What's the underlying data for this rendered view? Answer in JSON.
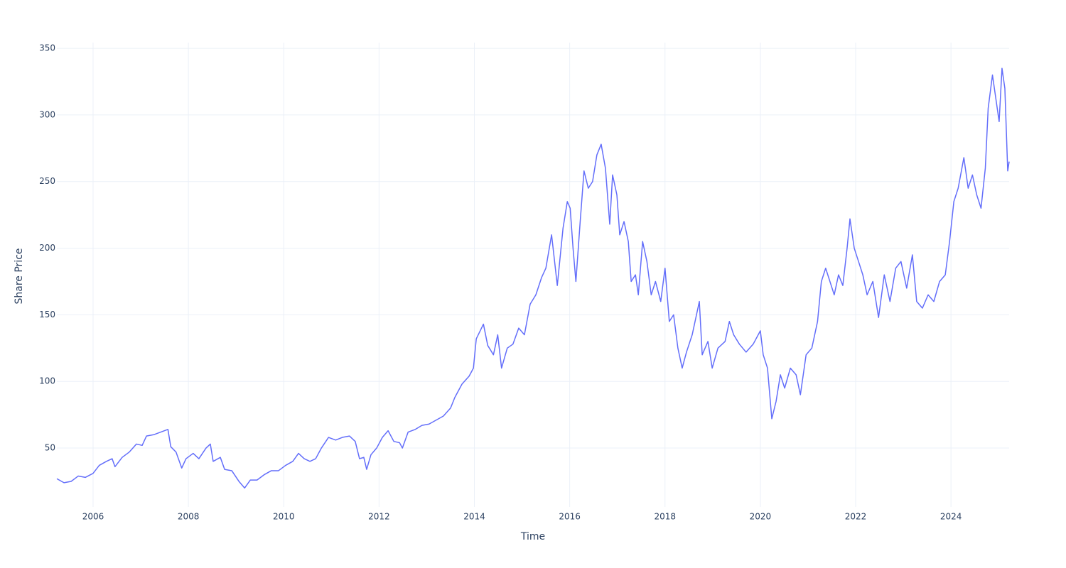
{
  "chart_data": {
    "type": "line",
    "x_label": "Time",
    "y_label": "Share Price",
    "xlim": [
      2005.24,
      2025.22
    ],
    "ylim": [
      5.8,
      354.3
    ],
    "xticks": [
      2006,
      2008,
      2010,
      2012,
      2014,
      2016,
      2018,
      2020,
      2022,
      2024
    ],
    "yticks": [
      50,
      100,
      150,
      200,
      250,
      300,
      350
    ],
    "grid": true,
    "x": [
      2005.24,
      2005.39,
      2005.54,
      2005.69,
      2005.84,
      2006.0,
      2006.13,
      2006.28,
      2006.4,
      2006.46,
      2006.61,
      2006.76,
      2006.91,
      2007.03,
      2007.12,
      2007.27,
      2007.42,
      2007.57,
      2007.63,
      2007.74,
      2007.86,
      2007.95,
      2008.1,
      2008.22,
      2008.37,
      2008.46,
      2008.52,
      2008.67,
      2008.76,
      2008.91,
      2009.06,
      2009.18,
      2009.3,
      2009.44,
      2009.59,
      2009.74,
      2009.89,
      2010.04,
      2010.19,
      2010.31,
      2010.43,
      2010.55,
      2010.67,
      2010.79,
      2010.94,
      2011.09,
      2011.23,
      2011.38,
      2011.5,
      2011.59,
      2011.68,
      2011.74,
      2011.83,
      2011.95,
      2012.07,
      2012.19,
      2012.31,
      2012.43,
      2012.49,
      2012.61,
      2012.76,
      2012.9,
      2013.05,
      2013.2,
      2013.35,
      2013.5,
      2013.59,
      2013.74,
      2013.89,
      2013.98,
      2014.04,
      2014.19,
      2014.28,
      2014.4,
      2014.49,
      2014.57,
      2014.69,
      2014.81,
      2014.93,
      2015.05,
      2015.17,
      2015.29,
      2015.41,
      2015.5,
      2015.62,
      2015.74,
      2015.86,
      2015.95,
      2016.01,
      2016.07,
      2016.13,
      2016.22,
      2016.3,
      2016.39,
      2016.48,
      2016.57,
      2016.66,
      2016.75,
      2016.84,
      2016.9,
      2016.99,
      2017.05,
      2017.14,
      2017.23,
      2017.29,
      2017.38,
      2017.44,
      2017.53,
      2017.62,
      2017.71,
      2017.8,
      2017.91,
      2018.0,
      2018.09,
      2018.18,
      2018.27,
      2018.36,
      2018.45,
      2018.57,
      2018.72,
      2018.78,
      2018.9,
      2018.99,
      2019.11,
      2019.26,
      2019.35,
      2019.44,
      2019.56,
      2019.7,
      2019.85,
      2020.0,
      2020.06,
      2020.15,
      2020.24,
      2020.33,
      2020.42,
      2020.51,
      2020.63,
      2020.75,
      2020.84,
      2020.96,
      2021.08,
      2021.2,
      2021.28,
      2021.37,
      2021.46,
      2021.55,
      2021.64,
      2021.73,
      2021.82,
      2021.88,
      2021.97,
      2022.06,
      2022.15,
      2022.24,
      2022.36,
      2022.48,
      2022.6,
      2022.72,
      2022.84,
      2022.95,
      2023.07,
      2023.19,
      2023.28,
      2023.4,
      2023.52,
      2023.64,
      2023.76,
      2023.88,
      2023.97,
      2024.06,
      2024.15,
      2024.27,
      2024.36,
      2024.45,
      2024.54,
      2024.63,
      2024.72,
      2024.78,
      2024.87,
      2024.95,
      2025.01,
      2025.07,
      2025.13,
      2025.19,
      2025.22
    ],
    "series": [
      {
        "color": "#636efa",
        "values": [
          27,
          24,
          25,
          29,
          28,
          31,
          37,
          40,
          42,
          36,
          43,
          47,
          53,
          52,
          59,
          60,
          62,
          64,
          51,
          47,
          35,
          42,
          46,
          42,
          50,
          53,
          40,
          43,
          34,
          33,
          25,
          20,
          26,
          26,
          30,
          33,
          33,
          37,
          40,
          46,
          42,
          40,
          42,
          50,
          58,
          56,
          58,
          59,
          55,
          42,
          43,
          34,
          45,
          50,
          58,
          63,
          55,
          54,
          50,
          62,
          64,
          67,
          68,
          71,
          74,
          80,
          88,
          98,
          104,
          110,
          132,
          143,
          127,
          120,
          135,
          110,
          125,
          128,
          140,
          135,
          158,
          165,
          178,
          185,
          210,
          172,
          215,
          235,
          230,
          200,
          175,
          220,
          258,
          245,
          250,
          270,
          278,
          260,
          218,
          255,
          240,
          210,
          220,
          205,
          175,
          180,
          165,
          205,
          190,
          165,
          175,
          160,
          185,
          145,
          150,
          125,
          110,
          122,
          135,
          160,
          120,
          130,
          110,
          125,
          130,
          145,
          135,
          128,
          122,
          128,
          138,
          120,
          110,
          72,
          85,
          105,
          95,
          110,
          105,
          90,
          120,
          125,
          145,
          175,
          185,
          175,
          165,
          180,
          172,
          200,
          222,
          200,
          190,
          180,
          165,
          175,
          148,
          180,
          160,
          185,
          190,
          170,
          195,
          160,
          155,
          165,
          160,
          175,
          180,
          205,
          235,
          245,
          268,
          245,
          255,
          240,
          230,
          260,
          305,
          330,
          310,
          295,
          335,
          320,
          258,
          265
        ]
      }
    ]
  }
}
